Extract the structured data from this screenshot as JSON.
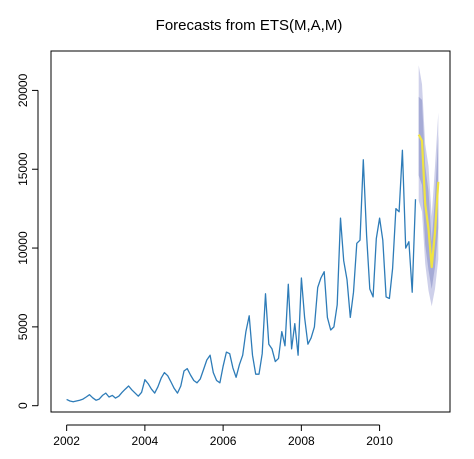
{
  "chart_data": {
    "type": "line",
    "title": "Forecasts from ETS(M,A,M)",
    "xlabel": "",
    "ylabel": "",
    "xlim": [
      2001.6,
      2011.8
    ],
    "ylim": [
      -400,
      22500
    ],
    "x_ticks": [
      2002,
      2004,
      2006,
      2008,
      2010
    ],
    "x_tick_labels": [
      "2002",
      "2004",
      "2006",
      "2008",
      "2010"
    ],
    "y_ticks": [
      0,
      5000,
      10000,
      15000,
      20000
    ],
    "y_tick_labels": [
      "0",
      "5000",
      "10000",
      "15000",
      "20000"
    ],
    "grid": false,
    "colors": {
      "series": "#2e7cb8",
      "forecast": "#f0e442",
      "band_95": "#c6c8e6",
      "band_80": "#9fa4d2",
      "axis": "#000000"
    },
    "series": [
      {
        "x": [
          2002.0,
          2002.083,
          2002.167,
          2002.25,
          2002.333,
          2002.417,
          2002.5,
          2002.583,
          2002.667,
          2002.75,
          2002.833,
          2002.917,
          2003.0,
          2003.083,
          2003.167,
          2003.25,
          2003.333,
          2003.417,
          2003.5,
          2003.583,
          2003.667,
          2003.75,
          2003.833,
          2003.917,
          2004.0,
          2004.083,
          2004.167,
          2004.25,
          2004.333,
          2004.417,
          2004.5,
          2004.583,
          2004.667,
          2004.75,
          2004.833,
          2004.917,
          2005.0,
          2005.083,
          2005.167,
          2005.25,
          2005.333,
          2005.417,
          2005.5,
          2005.583,
          2005.667,
          2005.75,
          2005.833,
          2005.917,
          2006.0,
          2006.083,
          2006.167,
          2006.25,
          2006.333,
          2006.417,
          2006.5,
          2006.583,
          2006.667,
          2006.75,
          2006.833,
          2006.917,
          2007.0,
          2007.083,
          2007.167,
          2007.25,
          2007.333,
          2007.417,
          2007.5,
          2007.583,
          2007.667,
          2007.75,
          2007.833,
          2007.917,
          2008.0,
          2008.083,
          2008.167,
          2008.25,
          2008.333,
          2008.417,
          2008.5,
          2008.583,
          2008.667,
          2008.75,
          2008.833,
          2008.917,
          2009.0,
          2009.083,
          2009.167,
          2009.25,
          2009.333,
          2009.417,
          2009.5,
          2009.583,
          2009.667,
          2009.75,
          2009.833,
          2009.917,
          2010.0,
          2010.083,
          2010.167,
          2010.25,
          2010.333,
          2010.417,
          2010.5,
          2010.583,
          2010.667,
          2010.75,
          2010.833,
          2010.917
        ],
        "y": [
          400,
          300,
          250,
          300,
          350,
          420,
          550,
          700,
          500,
          350,
          420,
          650,
          800,
          550,
          650,
          480,
          600,
          850,
          1050,
          1250,
          1000,
          800,
          600,
          850,
          1650,
          1400,
          1050,
          800,
          1200,
          1750,
          2100,
          1900,
          1500,
          1100,
          800,
          1250,
          2200,
          2350,
          1950,
          1600,
          1450,
          1700,
          2300,
          2900,
          3200,
          2100,
          1600,
          1450,
          2500,
          3400,
          3300,
          2400,
          1800,
          2600,
          3200,
          4700,
          5700,
          3200,
          2000,
          2000,
          3300,
          7100,
          3900,
          3600,
          2800,
          3000,
          4700,
          3800,
          7700,
          3600,
          5200,
          3200,
          8100,
          5600,
          3900,
          4300,
          5000,
          7500,
          8100,
          8500,
          5600,
          4800,
          5000,
          6400,
          11900,
          9200,
          8000,
          5600,
          7200,
          10300,
          10500,
          15600,
          10800,
          7400,
          6900,
          10600,
          11900,
          10500,
          6900,
          6800,
          8700,
          12500,
          12300,
          16200,
          10000,
          10400,
          7200,
          13100
        ]
      }
    ],
    "forecast": {
      "x": [
        2011.0,
        2011.083,
        2011.167,
        2011.25,
        2011.333,
        2011.417,
        2011.5
      ],
      "mean": [
        17200,
        16800,
        12800,
        11200,
        8800,
        11000,
        14200
      ],
      "lo80": [
        14600,
        14000,
        10200,
        8600,
        7400,
        8800,
        11300
      ],
      "hi80": [
        19600,
        19400,
        15200,
        13600,
        10400,
        13200,
        17200
      ],
      "lo95": [
        13000,
        12300,
        9000,
        7300,
        6300,
        7400,
        9300
      ],
      "hi95": [
        21600,
        20400,
        16600,
        15200,
        12000,
        15200,
        18600
      ]
    }
  }
}
